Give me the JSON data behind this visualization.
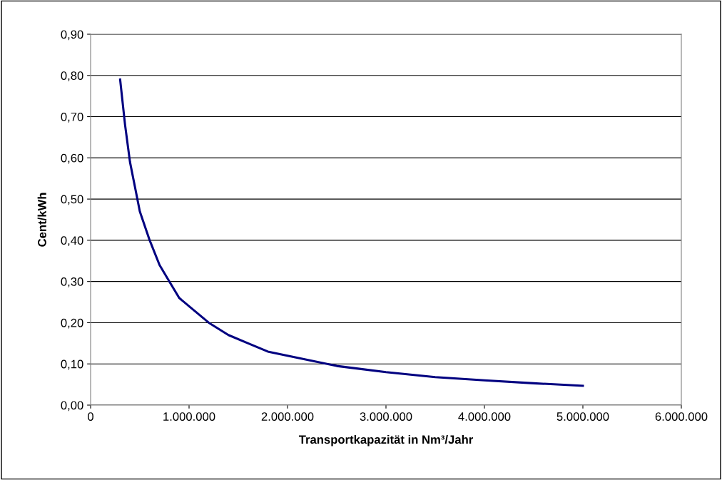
{
  "chart_data": {
    "type": "line",
    "xlabel": "Transportkapazität in Nm³/Jahr",
    "ylabel": "Cent/kWh",
    "x": [
      300000,
      350000,
      400000,
      450000,
      500000,
      600000,
      700000,
      800000,
      900000,
      1000000,
      1200000,
      1400000,
      1600000,
      1800000,
      2000000,
      2500000,
      3000000,
      3500000,
      4000000,
      4500000,
      5000000
    ],
    "series": [
      {
        "color": "#000080",
        "values": [
          0.79,
          0.68,
          0.59,
          0.53,
          0.47,
          0.4,
          0.34,
          0.3,
          0.26,
          0.24,
          0.2,
          0.17,
          0.15,
          0.13,
          0.12,
          0.095,
          0.08,
          0.068,
          0.06,
          0.053,
          0.047
        ]
      }
    ],
    "xlim": [
      0,
      6000000
    ],
    "xticks": [
      0,
      {
        "value": 1000000,
        "label": "1.000.000"
      },
      {
        "value": 2000000,
        "label": "2.000.000"
      },
      {
        "value": 3000000,
        "label": "3.000.000"
      },
      {
        "value": 4000000,
        "label": "4.000.000"
      },
      {
        "value": 5000000,
        "label": "5.000.000"
      },
      {
        "value": 6000000,
        "label": "6.000.000"
      }
    ],
    "ylim": [
      0,
      0.9
    ],
    "yticks": [
      {
        "value": 0,
        "label": "0,00"
      },
      {
        "value": 0.1,
        "label": "0,10"
      },
      {
        "value": 0.2,
        "label": "0,20"
      },
      {
        "value": 0.3,
        "label": "0,30"
      },
      {
        "value": 0.4,
        "label": "0,40"
      },
      {
        "value": 0.5,
        "label": "0,50"
      },
      {
        "value": 0.6,
        "label": "0,60"
      },
      {
        "value": 0.7,
        "label": "0,70"
      },
      {
        "value": 0.8,
        "label": "0,80"
      },
      {
        "value": 0.9,
        "label": "0,90"
      }
    ],
    "grid": "y",
    "marker": "none",
    "line_style": "solid"
  }
}
